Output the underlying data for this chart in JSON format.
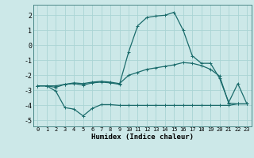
{
  "xlabel": "Humidex (Indice chaleur)",
  "background_color": "#cce8e8",
  "grid_color": "#aad4d4",
  "line_color": "#1a6b6b",
  "xlim": [
    -0.5,
    23.5
  ],
  "ylim": [
    -5.4,
    2.7
  ],
  "yticks": [
    -5,
    -4,
    -3,
    -2,
    -1,
    0,
    1,
    2
  ],
  "xticks": [
    0,
    1,
    2,
    3,
    4,
    5,
    6,
    7,
    8,
    9,
    10,
    11,
    12,
    13,
    14,
    15,
    16,
    17,
    18,
    19,
    20,
    21,
    22,
    23
  ],
  "line1_y": [
    -2.7,
    -2.7,
    -2.8,
    -2.6,
    -2.55,
    -2.65,
    -2.5,
    -2.45,
    -2.5,
    -2.6,
    -0.45,
    1.3,
    1.85,
    1.95,
    2.0,
    2.2,
    1.0,
    -0.7,
    -1.2,
    -1.2,
    -2.2,
    -3.8,
    -2.55,
    -3.9
  ],
  "line2_y": [
    -2.7,
    -2.7,
    -2.7,
    -2.6,
    -2.5,
    -2.55,
    -2.45,
    -2.4,
    -2.45,
    -2.55,
    -2.0,
    -1.8,
    -1.6,
    -1.5,
    -1.4,
    -1.3,
    -1.15,
    -1.2,
    -1.35,
    -1.6,
    -2.05,
    -3.85,
    -3.9,
    -3.9
  ],
  "line3_y": [
    -2.7,
    -2.7,
    -3.05,
    -4.15,
    -4.25,
    -4.7,
    -4.2,
    -3.95,
    -3.95,
    -4.0,
    -4.0,
    -4.0,
    -4.0,
    -4.0,
    -4.0,
    -4.0,
    -4.0,
    -4.0,
    -4.0,
    -4.0,
    -4.0,
    -4.0,
    -3.9,
    -3.9
  ]
}
